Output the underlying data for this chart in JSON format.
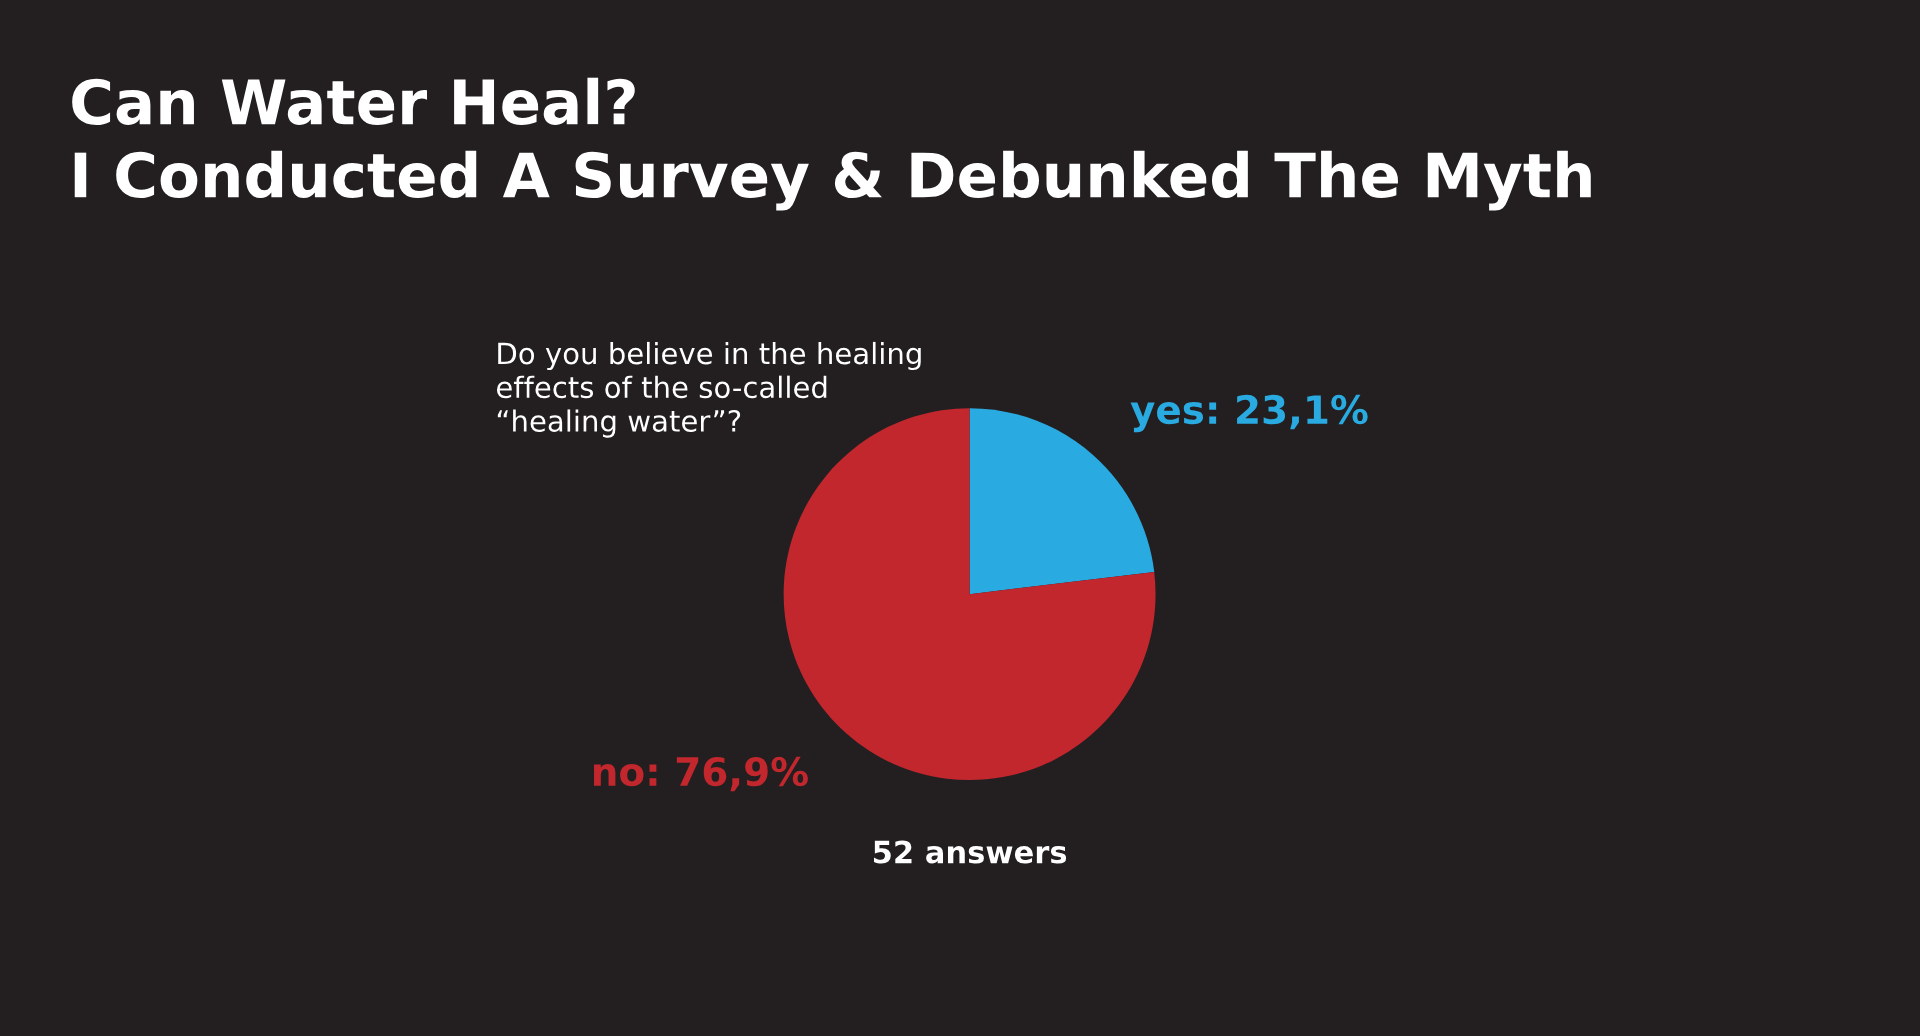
{
  "chart_data": {
    "type": "pie",
    "title": "Can Water Heal?\nI Conducted A Survey & Debunked The Myth",
    "subtitle": "Do you believe in the healing\neffects of the so-called\n“healing water”?",
    "categories": [
      "yes",
      "no"
    ],
    "values": [
      23.1,
      76.9
    ],
    "colors": [
      "#29abe2",
      "#c1272d"
    ],
    "value_labels": [
      "23,1%",
      "76,9%"
    ],
    "annotations": [
      "52 answers"
    ],
    "legend": false
  }
}
